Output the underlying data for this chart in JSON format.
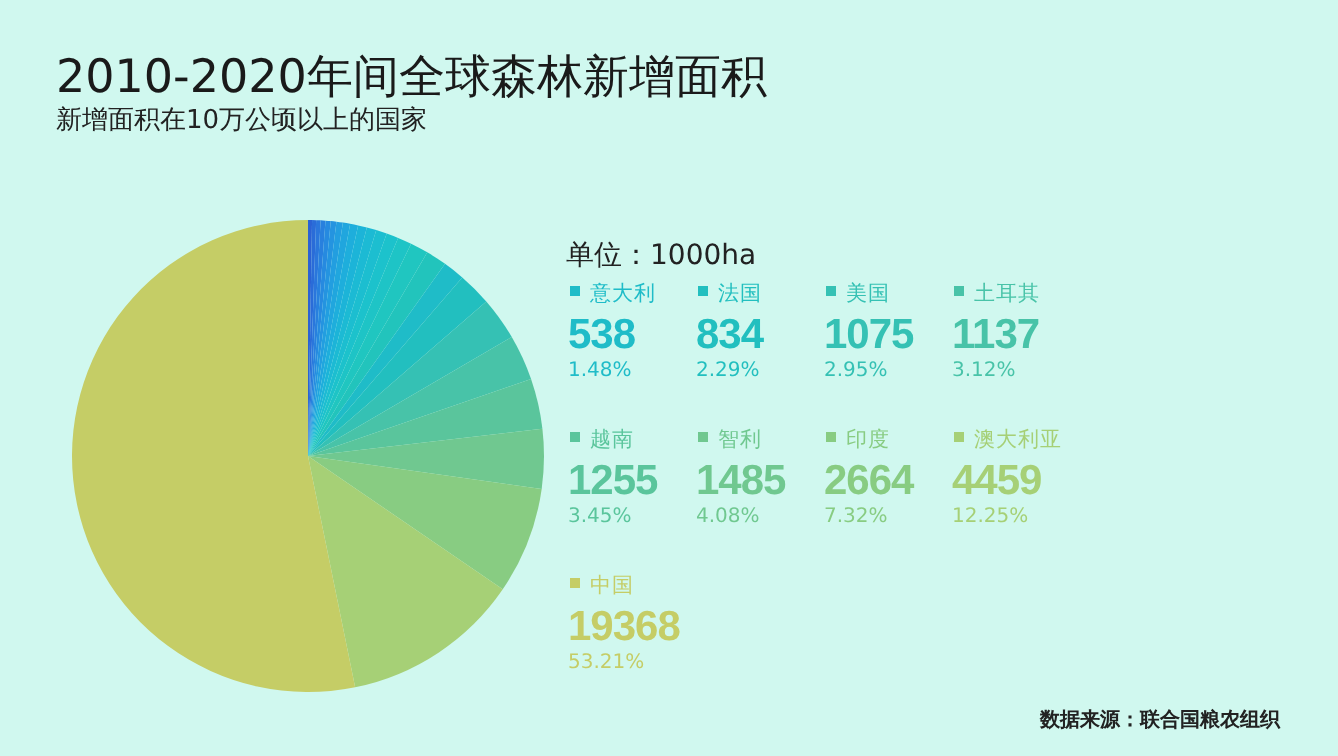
{
  "chart_data": {
    "type": "pie",
    "title": "2010-2020年间全球森林新增面积",
    "subtitle": "新增面积在10万公顷以上的国家",
    "annotations": [
      "单位：1000ha",
      "数据来源：联合国粮农组织",
      {
        "text": "1.48%",
        "x": "意大利"
      },
      {
        "text": "2.29%",
        "x": "法国"
      },
      {
        "text": "2.95%",
        "x": "美国"
      },
      {
        "text": "3.12%",
        "x": "土耳其"
      },
      {
        "text": "3.45%",
        "x": "越南"
      },
      {
        "text": "4.08%",
        "x": "智利"
      },
      {
        "text": "7.32%",
        "x": "印度"
      },
      {
        "text": "12.25%",
        "x": "澳大利亚"
      },
      {
        "text": "53.21%",
        "x": "中国"
      }
    ],
    "categories": [
      null,
      null,
      null,
      null,
      null,
      null,
      null,
      null,
      null,
      null,
      null,
      null,
      null,
      null,
      null,
      null,
      "意大利",
      "法国",
      "美国",
      "土耳其",
      "越南",
      "智利",
      "印度",
      "澳大利亚",
      "中国"
    ],
    "values": [
      100,
      100,
      110,
      120,
      130,
      140,
      160,
      180,
      200,
      220,
      240,
      270,
      300,
      350,
      450,
      520,
      538,
      834,
      1075,
      1137,
      1255,
      1485,
      2664,
      4459,
      19368
    ],
    "colors": [
      "#2a62d4",
      "#2a6cd8",
      "#2a76dc",
      "#2880de",
      "#268ae0",
      "#2494e0",
      "#229ee0",
      "#20a6de",
      "#1eaedc",
      "#1cb4d8",
      "#1cbad4",
      "#1cbed0",
      "#1cc2cc",
      "#1ec4c6",
      "#20c6c0",
      "#22c4bc",
      "#1fbcc8",
      "#22bfbf",
      "#35c1b4",
      "#48c3a8",
      "#5ac59c",
      "#70c890",
      "#88cc82",
      "#a6d076",
      "#c5cd66"
    ],
    "value_labels": [
      null,
      null,
      null,
      null,
      null,
      null,
      null,
      null,
      null,
      null,
      null,
      null,
      null,
      null,
      null,
      null,
      "538",
      "834",
      "1075",
      "1137",
      "1255",
      "1485",
      "2664",
      "4459",
      "19368"
    ],
    "legend": "right"
  }
}
